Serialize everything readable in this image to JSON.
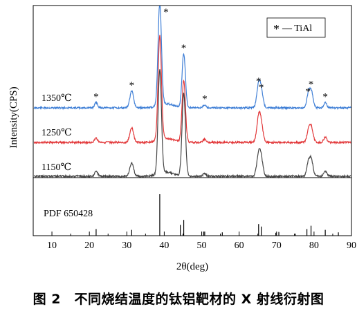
{
  "caption": "图 2　不同烧结温度的钛铝靶材的 X 射线衍射图",
  "chart_data": {
    "type": "line",
    "xlabel": "2θ(deg)",
    "ylabel": "Intensity(CPS)",
    "xlim": [
      5,
      90
    ],
    "xticks": [
      10,
      20,
      30,
      40,
      50,
      60,
      70,
      80,
      90
    ],
    "grid": false,
    "legend": {
      "position": "top-right",
      "marker": "*",
      "label": "— TiAl"
    },
    "series": [
      {
        "name": "1350℃",
        "color": "#3f7fd6",
        "peaks": [
          {
            "x": 21.8,
            "height": 0.05,
            "marked": true
          },
          {
            "x": 31.3,
            "height": 0.16,
            "marked": true
          },
          {
            "x": 38.8,
            "height": 1.0,
            "marked": true
          },
          {
            "x": 45.2,
            "height": 0.52,
            "marked": true
          },
          {
            "x": 50.8,
            "height": 0.03,
            "marked": true
          },
          {
            "x": 65.2,
            "height": 0.2,
            "marked": true
          },
          {
            "x": 65.9,
            "height": 0.14,
            "marked": true
          },
          {
            "x": 78.4,
            "height": 0.1,
            "marked": true
          },
          {
            "x": 79.2,
            "height": 0.17,
            "marked": true
          },
          {
            "x": 83.0,
            "height": 0.05,
            "marked": true
          }
        ]
      },
      {
        "name": "1250℃",
        "color": "#e2383a",
        "peaks": [
          {
            "x": 21.8,
            "height": 0.04
          },
          {
            "x": 31.3,
            "height": 0.14
          },
          {
            "x": 38.8,
            "height": 1.0
          },
          {
            "x": 45.2,
            "height": 0.6
          },
          {
            "x": 50.8,
            "height": 0.03
          },
          {
            "x": 65.2,
            "height": 0.22
          },
          {
            "x": 65.9,
            "height": 0.15
          },
          {
            "x": 78.4,
            "height": 0.08
          },
          {
            "x": 79.2,
            "height": 0.16
          },
          {
            "x": 83.0,
            "height": 0.05
          }
        ]
      },
      {
        "name": "1150℃",
        "color": "#444444",
        "peaks": [
          {
            "x": 21.8,
            "height": 0.05
          },
          {
            "x": 31.3,
            "height": 0.13
          },
          {
            "x": 38.8,
            "height": 1.0
          },
          {
            "x": 45.2,
            "height": 0.8
          },
          {
            "x": 50.8,
            "height": 0.03
          },
          {
            "x": 65.2,
            "height": 0.2
          },
          {
            "x": 65.9,
            "height": 0.14
          },
          {
            "x": 78.4,
            "height": 0.1
          },
          {
            "x": 79.2,
            "height": 0.17
          },
          {
            "x": 83.0,
            "height": 0.05
          }
        ]
      }
    ],
    "reference": {
      "label": "PDF  650428",
      "lines": [
        {
          "x": 21.8,
          "height": 0.16
        },
        {
          "x": 31.3,
          "height": 0.14
        },
        {
          "x": 38.8,
          "height": 1.0
        },
        {
          "x": 44.3,
          "height": 0.26
        },
        {
          "x": 45.2,
          "height": 0.38
        },
        {
          "x": 50.5,
          "height": 0.1
        },
        {
          "x": 50.8,
          "height": 0.1
        },
        {
          "x": 55.5,
          "height": 0.08
        },
        {
          "x": 65.2,
          "height": 0.28
        },
        {
          "x": 65.9,
          "height": 0.22
        },
        {
          "x": 69.8,
          "height": 0.07
        },
        {
          "x": 70.6,
          "height": 0.09
        },
        {
          "x": 74.8,
          "height": 0.05
        },
        {
          "x": 78.1,
          "height": 0.16
        },
        {
          "x": 79.2,
          "height": 0.24
        },
        {
          "x": 83.0,
          "height": 0.14
        },
        {
          "x": 86.5,
          "height": 0.08
        }
      ]
    }
  }
}
